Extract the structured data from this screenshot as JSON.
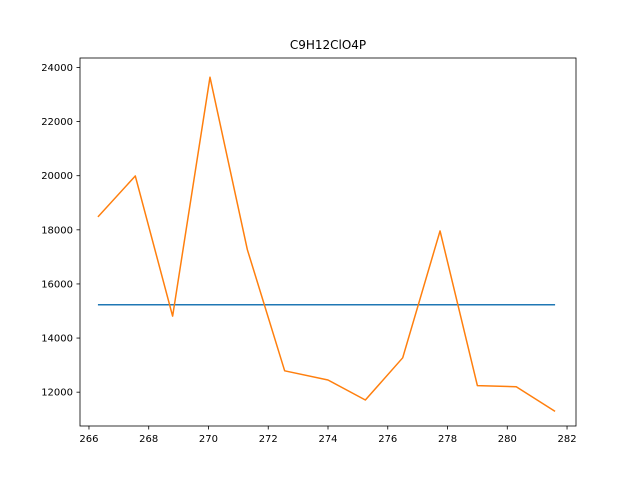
{
  "chart_data": {
    "type": "line",
    "title": "C9H12ClO4P",
    "xlabel": "",
    "ylabel": "",
    "xlim": [
      265.7,
      282.3
    ],
    "ylim": [
      10750,
      24350
    ],
    "x_ticks": [
      266,
      268,
      270,
      272,
      274,
      276,
      278,
      280,
      282
    ],
    "y_ticks": [
      12000,
      14000,
      16000,
      18000,
      20000,
      22000,
      24000
    ],
    "grid": false,
    "legend": "none",
    "series": [
      {
        "color": "#1f77b4",
        "points": [
          [
            266.3,
            15230
          ],
          [
            281.6,
            15230
          ]
        ]
      },
      {
        "color": "#ff7f0e",
        "points": [
          [
            266.3,
            18480
          ],
          [
            267.55,
            19990
          ],
          [
            268.8,
            14810
          ],
          [
            270.05,
            23640
          ],
          [
            271.3,
            17270
          ],
          [
            272.55,
            12790
          ],
          [
            274.0,
            12450
          ],
          [
            275.25,
            11710
          ],
          [
            276.5,
            13270
          ],
          [
            277.75,
            17960
          ],
          [
            279.0,
            12240
          ],
          [
            280.3,
            12200
          ],
          [
            281.6,
            11290
          ]
        ]
      }
    ]
  }
}
